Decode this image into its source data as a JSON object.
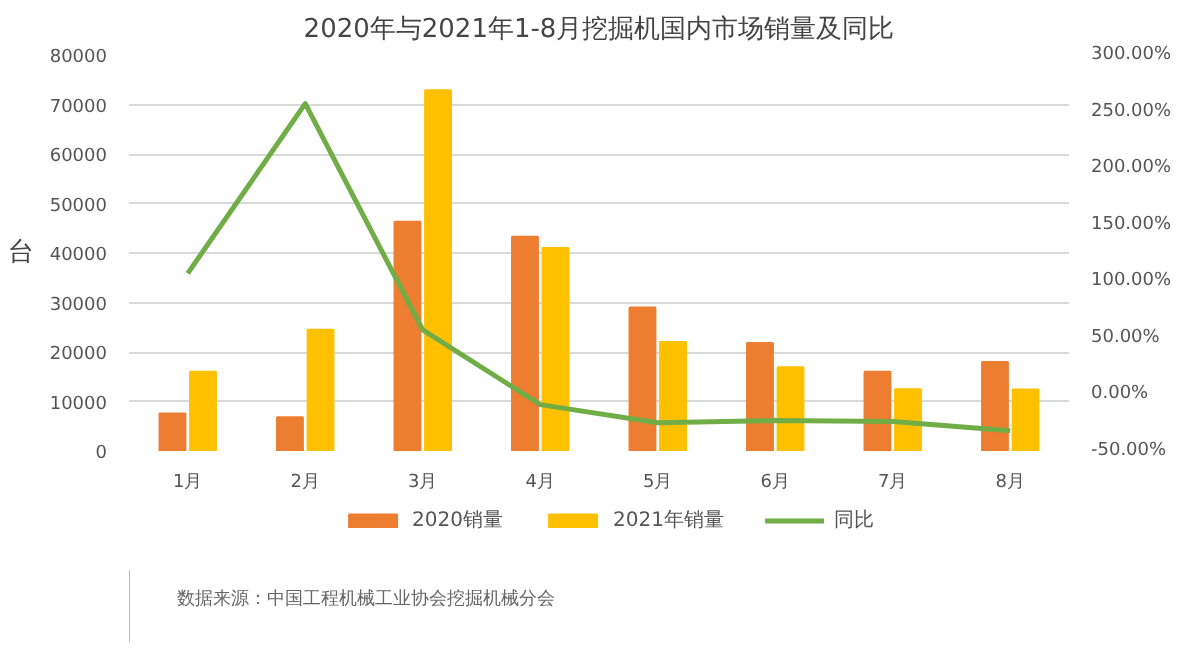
{
  "chart_data": {
    "type": "bar",
    "title": "2020年与2021年1-8月挖掘机国内市场销量及同比",
    "ylabel": "台",
    "categories": [
      "1月",
      "2月",
      "3月",
      "4月",
      "5月",
      "6月",
      "7月",
      "8月"
    ],
    "series": [
      {
        "name": "2020销量",
        "color": "#ed7d31",
        "values": [
          7600,
          6800,
          46300,
          43300,
          29000,
          21800,
          16000,
          18000
        ]
      },
      {
        "name": "2021年销量",
        "color": "#ffc000",
        "values": [
          16000,
          24500,
          72900,
          41000,
          22000,
          16900,
          12500,
          12400
        ]
      },
      {
        "name": "同比",
        "type": "line",
        "axis": "y2",
        "color": "#70ad47",
        "values": [
          107,
          257,
          57,
          -9,
          -25,
          -23,
          -24,
          -32
        ]
      }
    ],
    "ylim": [
      0,
      80000
    ],
    "yticks": [
      0,
      10000,
      20000,
      30000,
      40000,
      50000,
      60000,
      70000,
      80000
    ],
    "y2lim": [
      -50,
      300
    ],
    "y2ticks": [
      {
        "value": -50,
        "label": "-50.00%"
      },
      {
        "value": 0,
        "label": "0.00%"
      },
      {
        "value": 50,
        "label": "50.00%"
      },
      {
        "value": 100,
        "label": "100.00%"
      },
      {
        "value": 150,
        "label": "150.00%"
      },
      {
        "value": 200,
        "label": "200.00%"
      },
      {
        "value": 250,
        "label": "250.00%"
      },
      {
        "value": 300,
        "label": "300.00%"
      }
    ],
    "grid": "y",
    "legend": "bottom",
    "annotations": [
      "数据来源：中国工程机械工业协会挖掘机械分会"
    ]
  }
}
